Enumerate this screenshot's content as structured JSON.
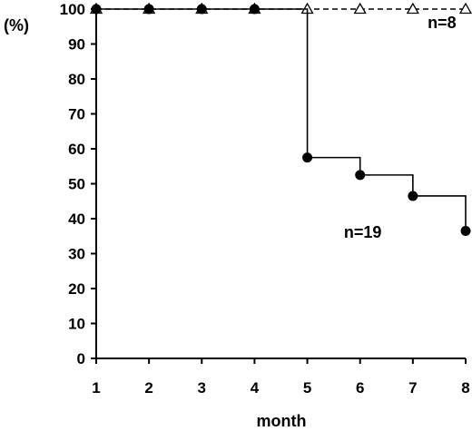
{
  "chart_data": {
    "type": "line",
    "title": "",
    "xlabel": "month",
    "ylabel": "(%)",
    "xlim": [
      1,
      8
    ],
    "ylim": [
      0,
      100
    ],
    "xticks": [
      1,
      2,
      3,
      4,
      5,
      6,
      7,
      8
    ],
    "yticks": [
      0,
      10,
      20,
      30,
      40,
      50,
      60,
      70,
      80,
      90,
      100
    ],
    "grid": false,
    "legend": "none",
    "series": [
      {
        "style": "step-dashed",
        "marker": "open-triangle",
        "color": "#000000",
        "x": [
          1,
          2,
          3,
          4,
          5,
          6,
          7,
          8
        ],
        "y": [
          100,
          100,
          100,
          100,
          100,
          100,
          100,
          100
        ]
      },
      {
        "style": "step-solid",
        "marker": "filled-circle",
        "color": "#000000",
        "x": [
          1,
          2,
          3,
          4,
          5,
          6,
          7,
          8
        ],
        "y": [
          100,
          100,
          100,
          100,
          57.5,
          52.5,
          46.5,
          36.5
        ]
      }
    ],
    "annotations": [
      {
        "text": "n=8",
        "x": 7.55,
        "y": 94.5
      },
      {
        "text": "n=19",
        "x": 6.05,
        "y": 34.5
      }
    ]
  }
}
